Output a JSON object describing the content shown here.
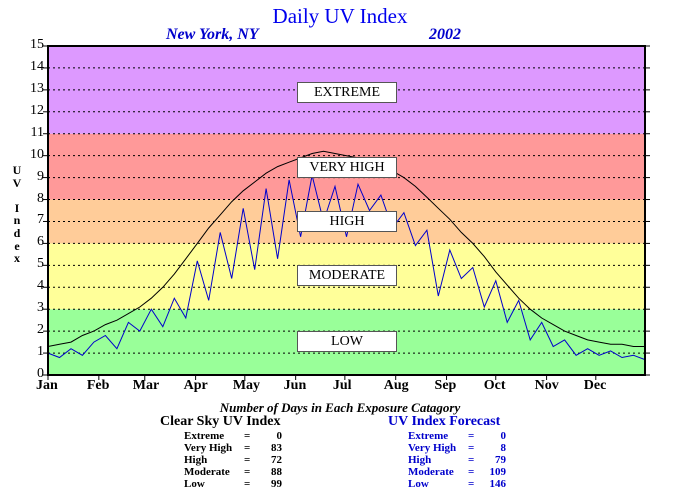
{
  "title": "Daily UV Index",
  "location": "New York, NY",
  "year": "2002",
  "y_axis_letters": [
    "U",
    "V",
    "",
    "I",
    "n",
    "d",
    "e",
    "x"
  ],
  "zone_labels": [
    "EXTREME",
    "VERY HIGH",
    "HIGH",
    "MODERATE",
    "LOW"
  ],
  "counts_caption": "Number of Days in Each Exposure Catagory",
  "clear_sky": {
    "title": "Clear Sky UV Index",
    "color": "#000000",
    "rows": [
      {
        "label": "Extreme",
        "eq": "=",
        "value": "0"
      },
      {
        "label": "Very High",
        "eq": "=",
        "value": "83"
      },
      {
        "label": "High",
        "eq": "=",
        "value": "72"
      },
      {
        "label": "Moderate",
        "eq": "=",
        "value": "88"
      },
      {
        "label": "Low",
        "eq": "=",
        "value": "99"
      }
    ]
  },
  "forecast": {
    "title": "UV Index Forecast",
    "color": "#0000cc",
    "rows": [
      {
        "label": "Extreme",
        "eq": "=",
        "value": "0"
      },
      {
        "label": "Very High",
        "eq": "=",
        "value": "8"
      },
      {
        "label": "High",
        "eq": "=",
        "value": "79"
      },
      {
        "label": "Moderate",
        "eq": "=",
        "value": "109"
      },
      {
        "label": "Low",
        "eq": "=",
        "value": "146"
      }
    ]
  },
  "chart_data": {
    "type": "line",
    "title": "Daily UV Index",
    "ylabel": "UV Index",
    "xlabel": "",
    "xlim": [
      1,
      365
    ],
    "ylim": [
      0,
      15
    ],
    "yticks": [
      0,
      1,
      2,
      3,
      4,
      5,
      6,
      7,
      8,
      9,
      10,
      11,
      12,
      13,
      14,
      15
    ],
    "xticks": [
      {
        "label": "Jan",
        "day": 1
      },
      {
        "label": "Feb",
        "day": 32
      },
      {
        "label": "Mar",
        "day": 60
      },
      {
        "label": "Apr",
        "day": 91
      },
      {
        "label": "May",
        "day": 121
      },
      {
        "label": "Jun",
        "day": 152
      },
      {
        "label": "Jul",
        "day": 182
      },
      {
        "label": "Aug",
        "day": 213
      },
      {
        "label": "Sep",
        "day": 244
      },
      {
        "label": "Oct",
        "day": 274
      },
      {
        "label": "Nov",
        "day": 305
      },
      {
        "label": "Dec",
        "day": 335
      }
    ],
    "grid": true,
    "bands": [
      {
        "label": "LOW",
        "from": 0,
        "to": 3,
        "color": "#99ff99"
      },
      {
        "label": "MODERATE",
        "from": 3,
        "to": 6,
        "color": "#ffff99"
      },
      {
        "label": "HIGH",
        "from": 6,
        "to": 8,
        "color": "#ffcc99"
      },
      {
        "label": "VERY HIGH",
        "from": 8,
        "to": 11,
        "color": "#ff9999"
      },
      {
        "label": "EXTREME",
        "from": 11,
        "to": 15,
        "color": "#dd99ff"
      }
    ],
    "series": [
      {
        "name": "Clear Sky UV Index",
        "color": "#000000",
        "x": [
          1,
          8,
          15,
          22,
          29,
          36,
          43,
          50,
          57,
          64,
          71,
          78,
          85,
          92,
          99,
          106,
          113,
          120,
          127,
          134,
          141,
          148,
          155,
          162,
          169,
          176,
          183,
          190,
          197,
          204,
          211,
          218,
          225,
          232,
          239,
          246,
          253,
          260,
          267,
          274,
          281,
          288,
          295,
          302,
          309,
          316,
          323,
          330,
          337,
          344,
          351,
          358,
          365
        ],
        "y": [
          1.3,
          1.4,
          1.5,
          1.8,
          2.0,
          2.3,
          2.5,
          2.8,
          3.1,
          3.5,
          4.0,
          4.6,
          5.3,
          6.0,
          6.7,
          7.3,
          7.9,
          8.4,
          8.8,
          9.2,
          9.5,
          9.7,
          9.9,
          10.1,
          10.2,
          10.1,
          10.0,
          9.9,
          9.7,
          9.5,
          9.3,
          9.0,
          8.6,
          8.1,
          7.6,
          7.1,
          6.5,
          6.0,
          5.4,
          4.7,
          4.1,
          3.5,
          3.0,
          2.6,
          2.3,
          2.0,
          1.8,
          1.6,
          1.5,
          1.4,
          1.4,
          1.3,
          1.3
        ]
      },
      {
        "name": "UV Index Forecast",
        "color": "#0000cc",
        "x": [
          1,
          8,
          15,
          22,
          29,
          36,
          43,
          50,
          57,
          64,
          71,
          78,
          85,
          92,
          99,
          106,
          113,
          120,
          127,
          134,
          141,
          148,
          155,
          162,
          169,
          176,
          183,
          190,
          197,
          204,
          211,
          218,
          225,
          232,
          239,
          246,
          253,
          260,
          267,
          274,
          281,
          288,
          295,
          302,
          309,
          316,
          323,
          330,
          337,
          344,
          351,
          358,
          365
        ],
        "y": [
          1.0,
          0.8,
          1.2,
          0.9,
          1.5,
          1.8,
          1.2,
          2.4,
          2.0,
          3.0,
          2.2,
          3.5,
          2.6,
          5.2,
          3.4,
          6.5,
          4.4,
          7.6,
          4.8,
          8.5,
          5.3,
          8.9,
          6.3,
          9.1,
          7.0,
          8.6,
          6.3,
          8.7,
          7.5,
          8.2,
          6.7,
          7.4,
          5.9,
          6.6,
          3.6,
          5.7,
          4.4,
          4.9,
          3.1,
          4.3,
          2.4,
          3.4,
          1.6,
          2.4,
          1.3,
          1.6,
          0.9,
          1.2,
          0.9,
          1.1,
          0.8,
          0.9,
          0.7
        ]
      }
    ]
  }
}
